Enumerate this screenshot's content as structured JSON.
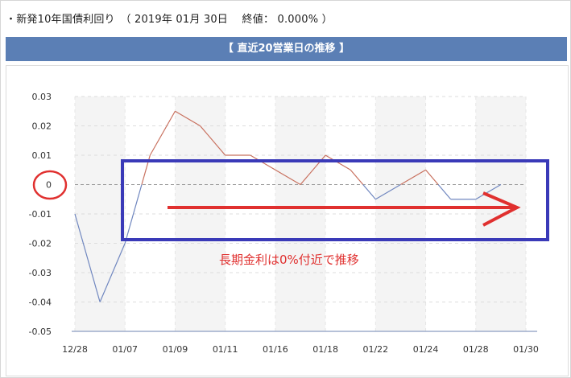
{
  "header": {
    "title": "・新発10年国債利回り　（ 2019年 01月 30日　 終値： 0.000% ）"
  },
  "chart_title": "【 直近20営業日の推移 】",
  "chart_data": {
    "type": "line",
    "title": "【 直近20営業日の推移 】",
    "xlabel": "",
    "ylabel": "",
    "ylim": [
      -0.05,
      0.03
    ],
    "yticks": [
      "0.03",
      "0.02",
      "0.01",
      "0",
      "-0.01",
      "-0.02",
      "-0.03",
      "-0.04",
      "-0.05"
    ],
    "xtick_labels": [
      "12/28",
      "01/07",
      "01/09",
      "01/11",
      "01/16",
      "01/18",
      "01/22",
      "01/24",
      "01/28",
      "01/30"
    ],
    "grid": true,
    "values": [
      -0.01,
      -0.04,
      -0.02,
      0.01,
      0.025,
      0.02,
      0.01,
      0.01,
      0.005,
      0.0,
      0.01,
      0.005,
      -0.005,
      0.0,
      0.005,
      -0.005,
      -0.005,
      0.0
    ],
    "colors": {
      "positive": "#c8705e",
      "negative": "#6f86bf",
      "zero_line": "#9a9a9a"
    }
  },
  "annotations": {
    "note": "長期金利は0%付近で推移",
    "colors": {
      "red": "#e0302f",
      "blue": "#3a3ab8"
    }
  }
}
